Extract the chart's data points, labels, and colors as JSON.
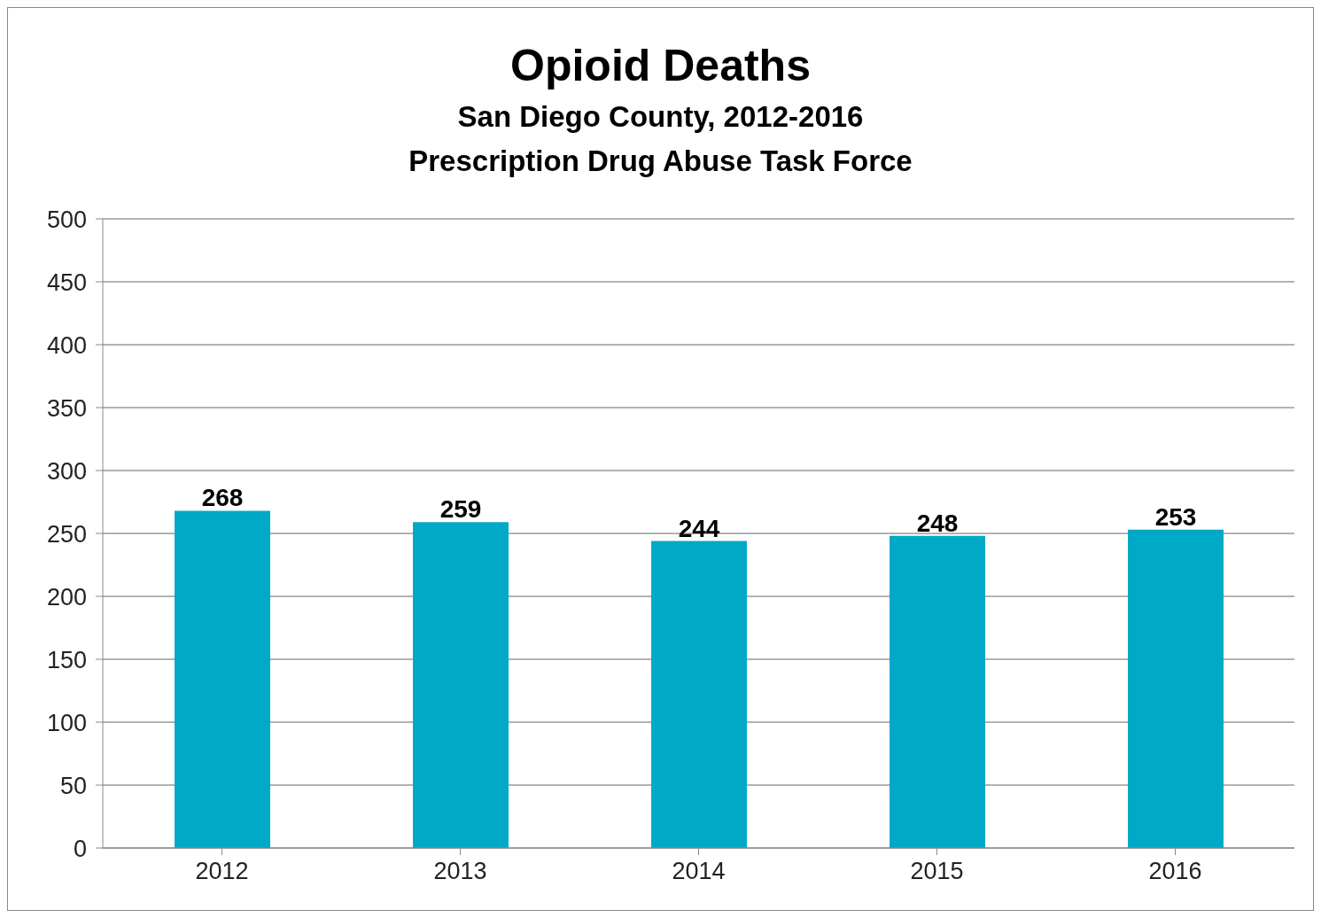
{
  "chart_data": {
    "type": "bar",
    "title": "Opioid Deaths",
    "subtitle": "San Diego County, 2012-2016",
    "annotations": [
      "Prescription Drug Abuse Task Force"
    ],
    "categories": [
      "2012",
      "2013",
      "2014",
      "2015",
      "2016"
    ],
    "values": [
      268,
      259,
      244,
      248,
      253
    ],
    "color": "#00a9c6",
    "ylim": [
      0,
      500
    ],
    "yticks": [
      0,
      50,
      100,
      150,
      200,
      250,
      300,
      350,
      400,
      450,
      500
    ],
    "grid": "y",
    "data_labels": true
  }
}
